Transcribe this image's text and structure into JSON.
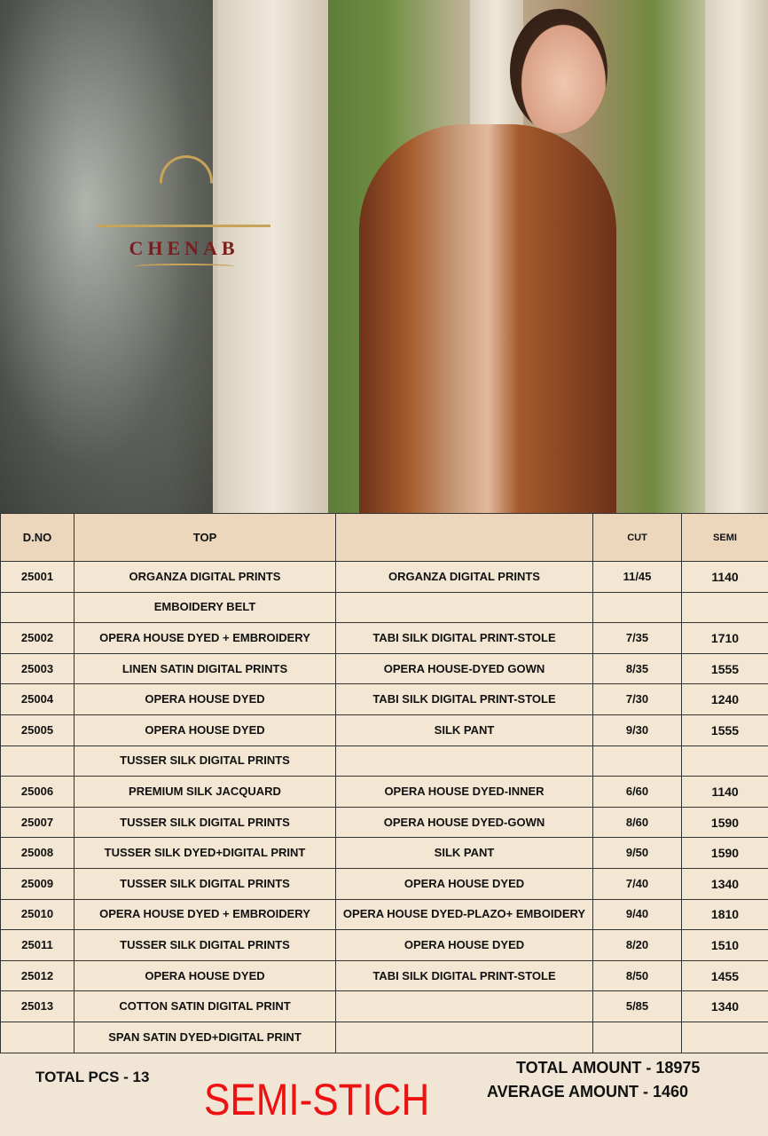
{
  "brand": {
    "name": "CHENAB"
  },
  "table": {
    "headers": [
      "D.NO",
      "TOP",
      "",
      "CUT",
      "SEMI"
    ],
    "rows": [
      [
        "25001",
        "ORGANZA DIGITAL PRINTS",
        "ORGANZA DIGITAL PRINTS",
        "11/45",
        "1140"
      ],
      [
        "",
        "EMBOIDERY BELT",
        "",
        "",
        ""
      ],
      [
        "25002",
        "OPERA HOUSE DYED + EMBROIDERY",
        "TABI SILK DIGITAL PRINT-STOLE",
        "7/35",
        "1710"
      ],
      [
        "25003",
        "LINEN SATIN DIGITAL PRINTS",
        "OPERA HOUSE-DYED GOWN",
        "8/35",
        "1555"
      ],
      [
        "25004",
        "OPERA HOUSE DYED",
        "TABI SILK DIGITAL PRINT-STOLE",
        "7/30",
        "1240"
      ],
      [
        "25005",
        "OPERA HOUSE DYED",
        "SILK PANT",
        "9/30",
        "1555"
      ],
      [
        "",
        "TUSSER SILK DIGITAL PRINTS",
        "",
        "",
        ""
      ],
      [
        "25006",
        "PREMIUM SILK JACQUARD",
        "OPERA HOUSE DYED-INNER",
        "6/60",
        "1140"
      ],
      [
        "25007",
        "TUSSER SILK DIGITAL PRINTS",
        "OPERA HOUSE DYED-GOWN",
        "8/60",
        "1590"
      ],
      [
        "25008",
        "TUSSER SILK DYED+DIGITAL PRINT",
        "SILK PANT",
        "9/50",
        "1590"
      ],
      [
        "25009",
        "TUSSER SILK DIGITAL PRINTS",
        "OPERA HOUSE DYED",
        "7/40",
        "1340"
      ],
      [
        "25010",
        "OPERA HOUSE DYED + EMBROIDERY",
        "OPERA HOUSE DYED-PLAZO+ EMBOIDERY",
        "9/40",
        "1810"
      ],
      [
        "25011",
        "TUSSER SILK DIGITAL PRINTS",
        "OPERA HOUSE DYED",
        "8/20",
        "1510"
      ],
      [
        "25012",
        "OPERA HOUSE DYED",
        "TABI SILK DIGITAL PRINT-STOLE",
        "8/50",
        "1455"
      ],
      [
        "25013",
        "COTTON SATIN DIGITAL PRINT",
        "",
        "5/85",
        "1340"
      ],
      [
        "",
        "SPAN SATIN DYED+DIGITAL PRINT",
        "",
        "",
        ""
      ]
    ]
  },
  "footer": {
    "total_pcs": "TOTAL PCS - 13",
    "title": "SEMI-STICH",
    "total_amount": "TOTAL AMOUNT - 18975",
    "average_amount": "AVERAGE AMOUNT - 1460"
  },
  "colors": {
    "title_red": "#ee1111",
    "header_bg": "#ecd7bd",
    "cell_bg": "#f3e6d3",
    "brand": "#7b1d1d",
    "gold": "#c8a35a"
  }
}
